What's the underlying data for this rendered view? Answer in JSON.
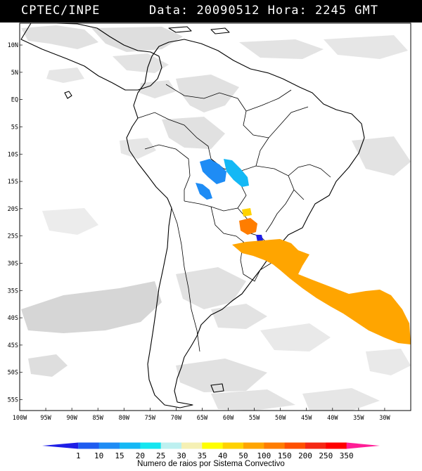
{
  "header": {
    "source": "CPTEC/INPE",
    "date_label": "Data:",
    "date_value": "20090512",
    "hour_label": "Hora:",
    "hour_value": "2245",
    "timezone": "GMT"
  },
  "map": {
    "lat_labels": [
      "10N",
      "5N",
      "EQ",
      "5S",
      "10S",
      "15S",
      "20S",
      "25S",
      "30S",
      "35S",
      "40S",
      "45S",
      "50S",
      "55S"
    ],
    "lon_labels": [
      "100W",
      "95W",
      "90W",
      "85W",
      "80W",
      "75W",
      "70W",
      "65W",
      "60W",
      "55W",
      "50W",
      "45W",
      "40W",
      "35W",
      "30W"
    ],
    "lon_range": [
      -100,
      -25
    ],
    "lat_range": [
      -57,
      14
    ],
    "colors": {
      "background": "#ffffff",
      "cloud": "#c8c8c8",
      "outline": "#000000",
      "header_bg": "#000000",
      "header_text": "#ffffff"
    }
  },
  "colorbar": {
    "ticks": [
      "1",
      "10",
      "15",
      "20",
      "25",
      "30",
      "35",
      "40",
      "50",
      "100",
      "150",
      "200",
      "250",
      "350"
    ],
    "colors": [
      "#1e1ee6",
      "#1e5cf0",
      "#1e8cf5",
      "#14b8f5",
      "#14e6f0",
      "#bdf0f0",
      "#f5f0b4",
      "#ffff00",
      "#ffd200",
      "#ffa500",
      "#ff7d00",
      "#ff5000",
      "#f52814",
      "#ff0000",
      "#ff1e96"
    ],
    "caption": "Numero de raios por Sistema Convectivo"
  }
}
